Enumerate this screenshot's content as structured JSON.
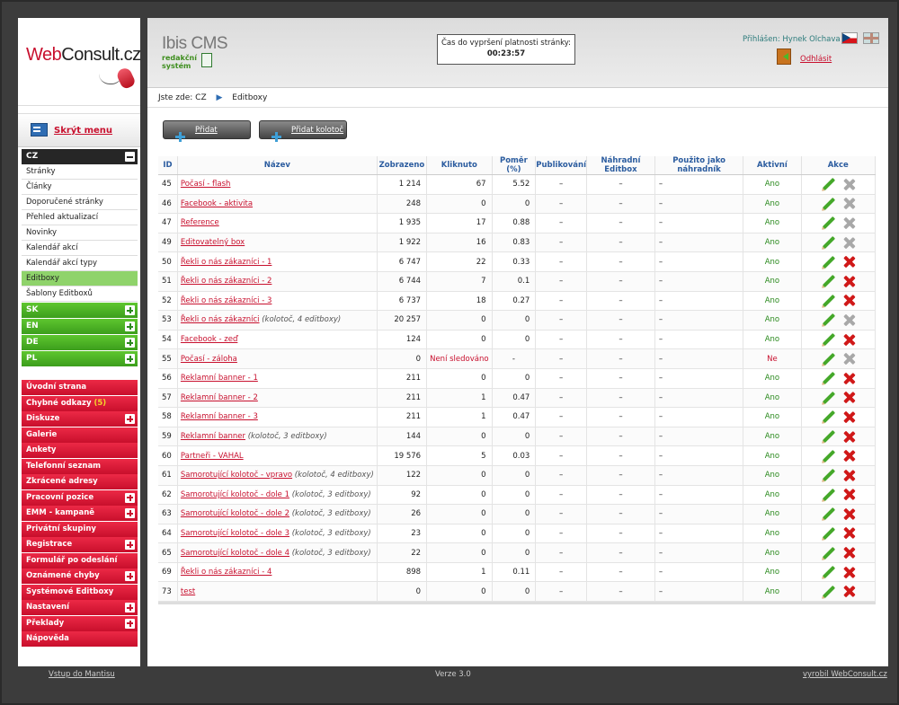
{
  "brand": {
    "logo_part1": "Web",
    "logo_part2": "Consult.cz",
    "cms_title": "Ibis CMS",
    "cms_sub1": "redakční",
    "cms_sub2": "systém"
  },
  "sidebar": {
    "hide_label": "Skrýt menu",
    "current_lang": "CZ",
    "sub_items": [
      "Stránky",
      "Články",
      "Doporučené stránky",
      "Přehled aktualizací",
      "Novinky",
      "Kalendář akcí",
      "Kalendář akcí typy",
      "Editboxy",
      "Šablony Editboxů"
    ],
    "active_sub": "Editboxy",
    "languages": [
      "SK",
      "EN",
      "DE",
      "PL"
    ],
    "modules": [
      {
        "label": "Úvodní strana",
        "expand": false
      },
      {
        "label": "Chybné odkazy",
        "count": "(5)",
        "expand": false
      },
      {
        "label": "Diskuze",
        "expand": true
      },
      {
        "label": "Galerie",
        "expand": false
      },
      {
        "label": "Ankety",
        "expand": false
      },
      {
        "label": "Telefonní seznam",
        "expand": false
      },
      {
        "label": "Zkrácené adresy",
        "expand": false
      },
      {
        "label": "Pracovní pozice",
        "expand": true
      },
      {
        "label": "EMM - kampaně",
        "expand": true
      },
      {
        "label": "Privátní skupiny",
        "expand": false
      },
      {
        "label": "Registrace",
        "expand": true
      },
      {
        "label": "Formulář po odeslání",
        "expand": false
      },
      {
        "label": "Oznámené chyby",
        "expand": true
      },
      {
        "label": "Systémové Editboxy",
        "expand": false
      },
      {
        "label": "Nastavení",
        "expand": true
      },
      {
        "label": "Překlady",
        "expand": true
      },
      {
        "label": "Nápověda",
        "expand": false
      }
    ]
  },
  "header": {
    "timer_label": "Čas do vypršení platnosti stránky:",
    "timer_value": "00:23:57",
    "user": "Přihlášen: Hynek Olchava",
    "logout": "Odhlásit"
  },
  "breadcrumb": {
    "prefix": "Jste zde:",
    "root": "CZ",
    "current": "Editboxy"
  },
  "toolbar": {
    "add": "Přidat",
    "add_carousel": "Přidat kolotoč"
  },
  "table": {
    "headers": [
      "ID",
      "Název",
      "Zobrazeno",
      "Kliknuto",
      "Poměr (%)",
      "Publikování",
      "Náhradní Editbox",
      "Použito jako náhradník",
      "Aktivní",
      "Akce"
    ],
    "rows": [
      {
        "id": "45",
        "name": "Počasí - flash",
        "note": "",
        "shown": "1 214",
        "clicked": "67",
        "ratio": "5.52",
        "pub": "–",
        "repl": "–",
        "used": "–",
        "active": "Ano",
        "del": false
      },
      {
        "id": "46",
        "name": "Facebook - aktivita",
        "note": "",
        "shown": "248",
        "clicked": "0",
        "ratio": "0",
        "pub": "–",
        "repl": "–",
        "used": "–",
        "active": "Ano",
        "del": false
      },
      {
        "id": "47",
        "name": "Reference",
        "note": "",
        "shown": "1 935",
        "clicked": "17",
        "ratio": "0.88",
        "pub": "–",
        "repl": "–",
        "used": "–",
        "active": "Ano",
        "del": false
      },
      {
        "id": "49",
        "name": "Editovatelný box",
        "note": "",
        "shown": "1 922",
        "clicked": "16",
        "ratio": "0.83",
        "pub": "–",
        "repl": "–",
        "used": "–",
        "active": "Ano",
        "del": false
      },
      {
        "id": "50",
        "name": "Řekli o nás zákazníci - 1",
        "note": "",
        "shown": "6 747",
        "clicked": "22",
        "ratio": "0.33",
        "pub": "–",
        "repl": "–",
        "used": "–",
        "active": "Ano",
        "del": true
      },
      {
        "id": "51",
        "name": "Řekli o nás zákazníci - 2",
        "note": "",
        "shown": "6 744",
        "clicked": "7",
        "ratio": "0.1",
        "pub": "–",
        "repl": "–",
        "used": "–",
        "active": "Ano",
        "del": true
      },
      {
        "id": "52",
        "name": "Řekli o nás zákazníci - 3",
        "note": "",
        "shown": "6 737",
        "clicked": "18",
        "ratio": "0.27",
        "pub": "–",
        "repl": "–",
        "used": "–",
        "active": "Ano",
        "del": true
      },
      {
        "id": "53",
        "name": "Řekli o nás zákazníci",
        "note": "(kolotoč, 4 editboxy)",
        "shown": "20 257",
        "clicked": "0",
        "ratio": "0",
        "pub": "–",
        "repl": "–",
        "used": "–",
        "active": "Ano",
        "del": false
      },
      {
        "id": "54",
        "name": "Facebook - zeď",
        "note": "",
        "shown": "124",
        "clicked": "0",
        "ratio": "0",
        "pub": "–",
        "repl": "–",
        "used": "–",
        "active": "Ano",
        "del": true
      },
      {
        "id": "55",
        "name": "Počasí - záloha",
        "note": "",
        "shown": "0",
        "clicked": "Není sledováno",
        "ratio": "-",
        "pub": "–",
        "repl": "–",
        "used": "–",
        "active": "Ne",
        "del": false
      },
      {
        "id": "56",
        "name": "Reklamní banner - 1",
        "note": "",
        "shown": "211",
        "clicked": "0",
        "ratio": "0",
        "pub": "–",
        "repl": "–",
        "used": "–",
        "active": "Ano",
        "del": true
      },
      {
        "id": "57",
        "name": "Reklamní banner - 2",
        "note": "",
        "shown": "211",
        "clicked": "1",
        "ratio": "0.47",
        "pub": "–",
        "repl": "–",
        "used": "–",
        "active": "Ano",
        "del": true
      },
      {
        "id": "58",
        "name": "Reklamní banner - 3",
        "note": "",
        "shown": "211",
        "clicked": "1",
        "ratio": "0.47",
        "pub": "–",
        "repl": "–",
        "used": "–",
        "active": "Ano",
        "del": true
      },
      {
        "id": "59",
        "name": "Reklamní banner",
        "note": "(kolotoč, 3 editboxy)",
        "shown": "144",
        "clicked": "0",
        "ratio": "0",
        "pub": "–",
        "repl": "–",
        "used": "–",
        "active": "Ano",
        "del": true
      },
      {
        "id": "60",
        "name": "Partneři - VAHAL",
        "note": "",
        "shown": "19 576",
        "clicked": "5",
        "ratio": "0.03",
        "pub": "–",
        "repl": "–",
        "used": "–",
        "active": "Ano",
        "del": true
      },
      {
        "id": "61",
        "name": "Samorotující kolotoč - vpravo",
        "note": "(kolotoč, 4 editboxy)",
        "shown": "122",
        "clicked": "0",
        "ratio": "0",
        "pub": "–",
        "repl": "–",
        "used": "–",
        "active": "Ano",
        "del": true
      },
      {
        "id": "62",
        "name": "Samorotující kolotoč - dole 1",
        "note": "(kolotoč, 3 editboxy)",
        "shown": "92",
        "clicked": "0",
        "ratio": "0",
        "pub": "–",
        "repl": "–",
        "used": "–",
        "active": "Ano",
        "del": true
      },
      {
        "id": "63",
        "name": "Samorotující kolotoč - dole 2",
        "note": "(kolotoč, 3 editboxy)",
        "shown": "26",
        "clicked": "0",
        "ratio": "0",
        "pub": "–",
        "repl": "–",
        "used": "–",
        "active": "Ano",
        "del": true
      },
      {
        "id": "64",
        "name": "Samorotující kolotoč - dole 3",
        "note": "(kolotoč, 3 editboxy)",
        "shown": "23",
        "clicked": "0",
        "ratio": "0",
        "pub": "–",
        "repl": "–",
        "used": "–",
        "active": "Ano",
        "del": true
      },
      {
        "id": "65",
        "name": "Samorotující kolotoč - dole 4",
        "note": "(kolotoč, 3 editboxy)",
        "shown": "22",
        "clicked": "0",
        "ratio": "0",
        "pub": "–",
        "repl": "–",
        "used": "–",
        "active": "Ano",
        "del": true
      },
      {
        "id": "69",
        "name": "Řekli o nás zákazníci - 4",
        "note": "",
        "shown": "898",
        "clicked": "1",
        "ratio": "0.11",
        "pub": "–",
        "repl": "–",
        "used": "–",
        "active": "Ano",
        "del": true
      },
      {
        "id": "73",
        "name": "test",
        "note": "",
        "shown": "0",
        "clicked": "0",
        "ratio": "0",
        "pub": "–",
        "repl": "–",
        "used": "–",
        "active": "Ano",
        "del": true
      }
    ]
  },
  "footer": {
    "left": "Vstup do Mantisu",
    "center": "Verze 3.0",
    "right": "vyrobil WebConsult.cz"
  },
  "colors": {
    "accent_red": "#c8102e",
    "accent_green": "#3c9e1c",
    "header_blue": "#2b5c9f"
  }
}
